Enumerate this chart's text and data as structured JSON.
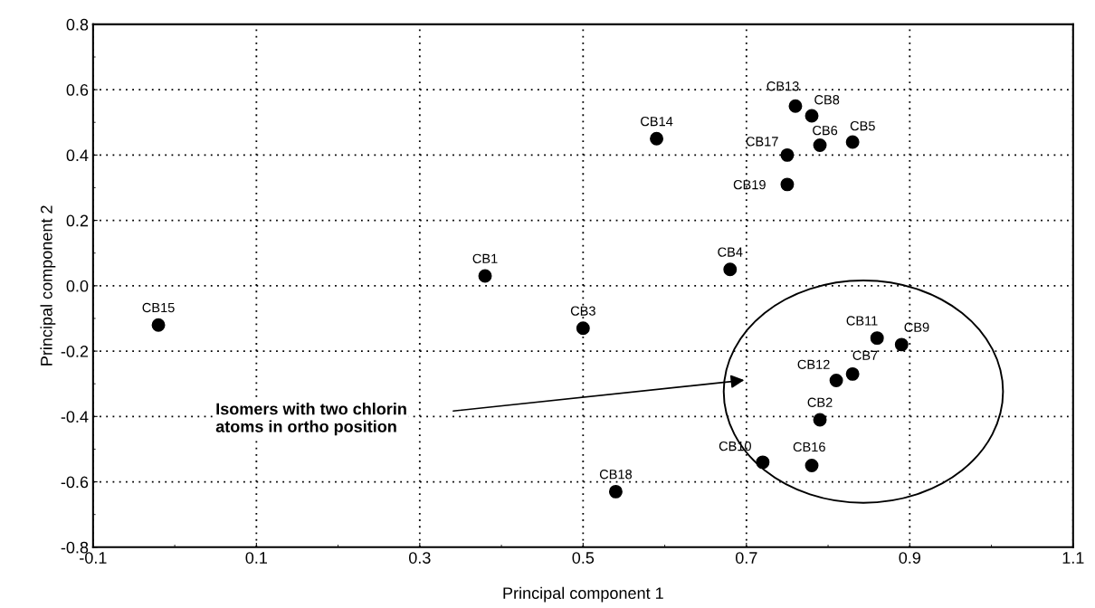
{
  "chart_data": {
    "type": "scatter",
    "xlabel": "Principal component 1",
    "ylabel": "Principal component 2",
    "xlim": [
      -0.1,
      1.1
    ],
    "xticks": [
      -0.1,
      0.1,
      0.3,
      0.5,
      0.7,
      0.9,
      1.1
    ],
    "ylim": [
      -0.8,
      0.8
    ],
    "yticks": [
      -0.8,
      -0.6,
      -0.4,
      -0.2,
      {
        "value": 0,
        "label": "0.0"
      },
      0.2,
      0.4,
      0.6,
      0.8
    ],
    "grid": true,
    "marker": "circle",
    "legend": false,
    "annotations": [
      "Isomers with two chlorin\natoms in ortho position"
    ],
    "series": [
      {
        "name": "CB1",
        "color": "#000000",
        "x": [
          0.38
        ],
        "values": [
          0.03
        ]
      },
      {
        "name": "CB2",
        "color": "#000000",
        "x": [
          0.79
        ],
        "values": [
          -0.41
        ]
      },
      {
        "name": "CB3",
        "color": "#000000",
        "x": [
          0.5
        ],
        "values": [
          -0.13
        ]
      },
      {
        "name": "CB4",
        "color": "#000000",
        "x": [
          0.68
        ],
        "values": [
          0.05
        ]
      },
      {
        "name": "CB5",
        "color": "#000000",
        "x": [
          0.83
        ],
        "values": [
          0.44
        ]
      },
      {
        "name": "CB6",
        "color": "#000000",
        "x": [
          0.79
        ],
        "values": [
          0.43
        ]
      },
      {
        "name": "CB7",
        "color": "#000000",
        "x": [
          0.83
        ],
        "values": [
          -0.27
        ]
      },
      {
        "name": "CB8",
        "color": "#000000",
        "x": [
          0.78
        ],
        "values": [
          0.52
        ]
      },
      {
        "name": "CB9",
        "color": "#000000",
        "x": [
          0.89
        ],
        "values": [
          -0.18
        ]
      },
      {
        "name": "CB10",
        "color": "#000000",
        "x": [
          0.72
        ],
        "values": [
          -0.54
        ]
      },
      {
        "name": "CB11",
        "color": "#000000",
        "x": [
          0.86
        ],
        "values": [
          -0.16
        ]
      },
      {
        "name": "CB12",
        "color": "#000000",
        "x": [
          0.81
        ],
        "values": [
          -0.29
        ]
      },
      {
        "name": "CB13",
        "color": "#000000",
        "x": [
          0.76
        ],
        "values": [
          0.55
        ]
      },
      {
        "name": "CB14",
        "color": "#000000",
        "x": [
          0.59
        ],
        "values": [
          0.45
        ]
      },
      {
        "name": "CB15",
        "color": "#000000",
        "x": [
          -0.02
        ],
        "values": [
          -0.12
        ]
      },
      {
        "name": "CB16",
        "color": "#000000",
        "x": [
          0.78
        ],
        "values": [
          -0.55
        ]
      },
      {
        "name": "CB17",
        "color": "#000000",
        "x": [
          0.75
        ],
        "values": [
          0.4
        ]
      },
      {
        "name": "CB18",
        "color": "#000000",
        "x": [
          0.54
        ],
        "values": [
          -0.63
        ]
      },
      {
        "name": "CB19",
        "color": "#000000",
        "x": [
          0.75
        ],
        "values": [
          0.31
        ]
      }
    ]
  }
}
